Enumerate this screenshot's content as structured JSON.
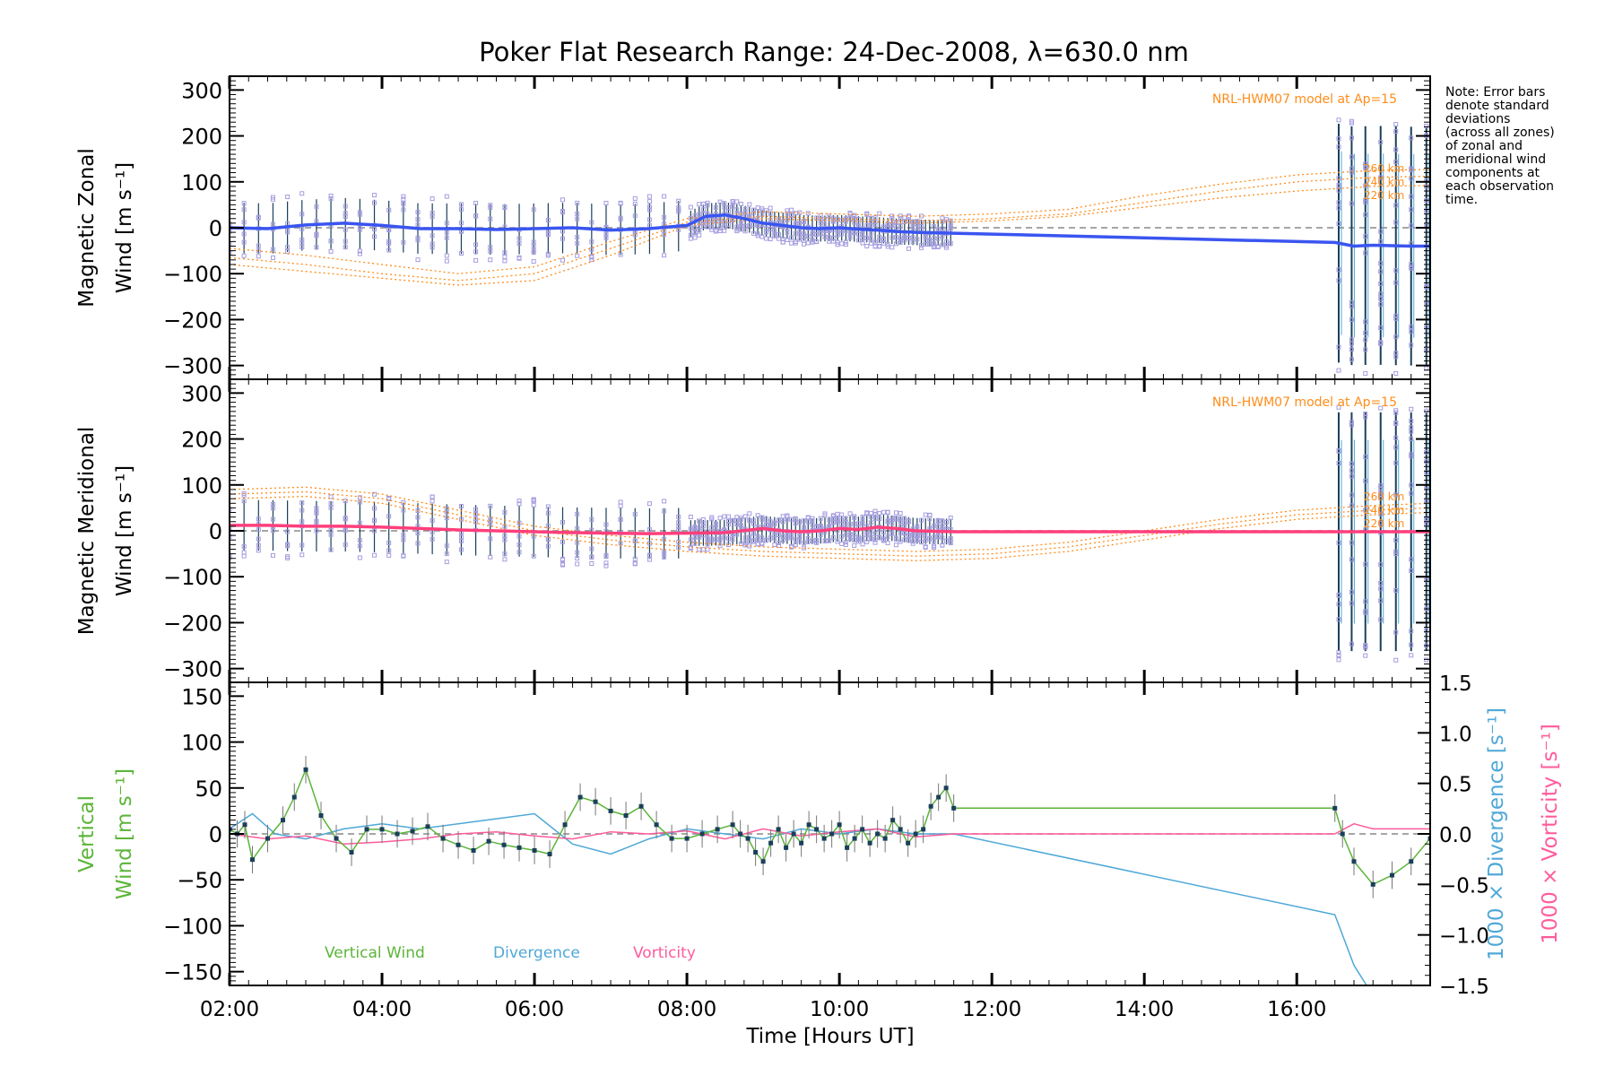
{
  "title": "Poker Flat Research Range: 24-Dec-2008, λ=630.0 nm",
  "note": [
    "Note: Error bars",
    "denote standard",
    "deviations",
    "(across all zones)",
    "of zonal and",
    "meridional wind",
    "components at",
    "each observation",
    "time."
  ],
  "colors": {
    "zonal": "#3a55f0",
    "meridional": "#ff3f7c",
    "vertical": "#5cb53a",
    "divergence": "#4fa8d8",
    "vorticity": "#ff5b9b",
    "model": "#ff8c1a",
    "errorbar": "#1a3f5a",
    "scatter": "#a59de0"
  },
  "chart_data": [
    {
      "type": "line",
      "panel": "zonal",
      "ylabel": [
        "Magnetic Zonal",
        "Wind [m s⁻¹]"
      ],
      "ylim": [
        -330,
        330
      ],
      "yticks": [
        "300",
        "200",
        "100",
        "0",
        "−100",
        "−200",
        "−300"
      ],
      "yticks_values": [
        300,
        200,
        100,
        0,
        -100,
        -200,
        -300
      ],
      "xlim": [
        2,
        17.75
      ],
      "model_label": "NRL-HWM07 model at Ap=15",
      "model_altitudes": [
        "260 km",
        "240 km",
        "220 km"
      ],
      "series": [
        {
          "type": "line",
          "x": [
            2.0,
            2.5,
            3.0,
            3.5,
            4.0,
            4.5,
            5.0,
            5.5,
            6.0,
            6.5,
            7.0,
            7.5,
            8.0,
            8.25,
            8.5,
            8.75,
            9.0,
            9.25,
            9.5,
            9.75,
            10.0,
            10.25,
            10.5,
            10.75,
            11.0,
            11.5,
            16.5,
            16.75,
            17.0,
            17.5,
            17.75
          ],
          "y": [
            0,
            -2,
            6,
            10,
            5,
            -2,
            -2,
            -4,
            -2,
            0,
            -5,
            -2,
            5,
            25,
            28,
            20,
            10,
            5,
            0,
            -2,
            0,
            -3,
            -5,
            -8,
            -10,
            -12,
            -32,
            -40,
            -38,
            -40,
            -40
          ]
        }
      ],
      "models": [
        {
          "x": [
            2,
            3,
            4,
            5,
            6,
            7,
            8,
            9,
            10,
            11,
            12,
            13,
            14,
            15,
            16,
            17,
            17.75
          ],
          "y": [
            -80,
            -95,
            -110,
            -125,
            -115,
            -60,
            5,
            20,
            15,
            10,
            15,
            25,
            45,
            65,
            80,
            90,
            92
          ]
        },
        {
          "x": [
            2,
            3,
            4,
            5,
            6,
            7,
            8,
            9,
            10,
            11,
            12,
            13,
            14,
            15,
            16,
            17,
            17.75
          ],
          "y": [
            -65,
            -80,
            -100,
            -115,
            -100,
            -45,
            12,
            25,
            20,
            15,
            20,
            30,
            55,
            80,
            100,
            110,
            112
          ]
        },
        {
          "x": [
            2,
            3,
            4,
            5,
            6,
            7,
            8,
            9,
            10,
            11,
            12,
            13,
            14,
            15,
            16,
            17,
            17.75
          ],
          "y": [
            -45,
            -60,
            -80,
            -100,
            -85,
            -30,
            20,
            35,
            30,
            25,
            30,
            40,
            70,
            95,
            115,
            125,
            127
          ]
        }
      ]
    },
    {
      "type": "line",
      "panel": "meridional",
      "ylabel": [
        "Magnetic Meridional",
        "Wind [m s⁻¹]"
      ],
      "ylim": [
        -330,
        330
      ],
      "yticks": [
        "300",
        "200",
        "100",
        "0",
        "−100",
        "−200",
        "−300"
      ],
      "yticks_values": [
        300,
        200,
        100,
        0,
        -100,
        -200,
        -300
      ],
      "xlim": [
        2,
        17.75
      ],
      "model_label": "NRL-HWM07 model at Ap=15",
      "model_altitudes": [
        "260 km",
        "240 km",
        "220 km"
      ],
      "series": [
        {
          "type": "line",
          "x": [
            2.0,
            2.5,
            3.0,
            3.5,
            4.0,
            4.5,
            5.0,
            5.5,
            6.0,
            6.5,
            7.0,
            7.5,
            8.0,
            8.5,
            9.0,
            9.25,
            9.5,
            9.75,
            10.0,
            10.25,
            10.5,
            10.75,
            11.0,
            11.5,
            16.5,
            17.0,
            17.75
          ],
          "y": [
            12,
            12,
            10,
            10,
            8,
            5,
            2,
            0,
            -2,
            -4,
            -5,
            -6,
            -5,
            -4,
            5,
            0,
            -2,
            0,
            5,
            3,
            8,
            5,
            0,
            -2,
            -2,
            -2,
            -2
          ]
        }
      ],
      "models": [
        {
          "x": [
            2,
            3,
            4,
            5,
            6,
            7,
            8,
            9,
            10,
            11,
            12,
            13,
            14,
            15,
            16,
            17,
            17.75
          ],
          "y": [
            70,
            75,
            60,
            25,
            -10,
            -30,
            -45,
            -55,
            -60,
            -65,
            -60,
            -45,
            -20,
            5,
            25,
            35,
            40
          ]
        },
        {
          "x": [
            2,
            3,
            4,
            5,
            6,
            7,
            8,
            9,
            10,
            11,
            12,
            13,
            14,
            15,
            16,
            17,
            17.75
          ],
          "y": [
            80,
            85,
            70,
            35,
            0,
            -20,
            -35,
            -45,
            -50,
            -55,
            -50,
            -35,
            -10,
            15,
            35,
            45,
            50
          ]
        },
        {
          "x": [
            2,
            3,
            4,
            5,
            6,
            7,
            8,
            9,
            10,
            11,
            12,
            13,
            14,
            15,
            16,
            17,
            17.75
          ],
          "y": [
            90,
            95,
            80,
            45,
            10,
            -10,
            -25,
            -35,
            -40,
            -45,
            -40,
            -25,
            0,
            25,
            45,
            55,
            60
          ]
        }
      ]
    },
    {
      "type": "line",
      "panel": "vertical",
      "ylabel": [
        "Vertical",
        "Wind [m s⁻¹]"
      ],
      "ylim": [
        -165,
        165
      ],
      "yticks": [
        "150",
        "100",
        "50",
        "0",
        "−50",
        "−100",
        "−150"
      ],
      "yticks_values": [
        150,
        100,
        50,
        0,
        -50,
        -100,
        -150
      ],
      "y2label_divergence": "1000 × Divergence [s⁻¹]",
      "y2label_vorticity": "1000 × Vorticity [s⁻¹]",
      "y2lim": [
        -1.5,
        1.5
      ],
      "y2ticks": [
        "1.5",
        "1.0",
        "0.5",
        "0.0",
        "−0.5",
        "−1.0",
        "−1.5"
      ],
      "y2ticks_values": [
        1.5,
        1.0,
        0.5,
        0.0,
        -0.5,
        -1.0,
        -1.5
      ],
      "xlabel": "Time [Hours UT]",
      "xticks": [
        "02:00",
        "04:00",
        "06:00",
        "08:00",
        "10:00",
        "12:00",
        "14:00",
        "16:00"
      ],
      "xticks_values": [
        2,
        4,
        6,
        8,
        10,
        12,
        14,
        16
      ],
      "xlim": [
        2,
        17.75
      ],
      "legend": [
        "Vertical Wind",
        "Divergence",
        "Vorticity"
      ],
      "series": [
        {
          "name": "Vertical Wind",
          "x": [
            2.0,
            2.1,
            2.2,
            2.3,
            2.5,
            2.7,
            2.85,
            3.0,
            3.2,
            3.4,
            3.6,
            3.8,
            4.0,
            4.2,
            4.4,
            4.6,
            4.8,
            5.0,
            5.2,
            5.4,
            5.6,
            5.8,
            6.0,
            6.2,
            6.4,
            6.6,
            6.8,
            7.0,
            7.2,
            7.4,
            7.6,
            7.8,
            8.0,
            8.2,
            8.4,
            8.6,
            8.7,
            8.8,
            8.9,
            9.0,
            9.1,
            9.2,
            9.3,
            9.4,
            9.5,
            9.6,
            9.7,
            9.8,
            9.9,
            10.0,
            10.1,
            10.2,
            10.3,
            10.4,
            10.5,
            10.6,
            10.7,
            10.8,
            10.9,
            11.0,
            11.1,
            11.2,
            11.3,
            11.4,
            11.5,
            16.5,
            16.6,
            16.75,
            17.0,
            17.25,
            17.5,
            17.75
          ],
          "y": [
            5,
            0,
            10,
            -28,
            -5,
            15,
            40,
            70,
            20,
            -5,
            -20,
            5,
            5,
            0,
            3,
            8,
            -5,
            -12,
            -18,
            -8,
            -12,
            -15,
            -18,
            -22,
            10,
            40,
            35,
            25,
            20,
            30,
            10,
            -5,
            -5,
            0,
            5,
            10,
            0,
            -5,
            -20,
            -30,
            -10,
            5,
            -15,
            0,
            -10,
            10,
            5,
            -5,
            0,
            10,
            -15,
            -5,
            5,
            -10,
            0,
            -5,
            15,
            5,
            -10,
            0,
            5,
            30,
            40,
            50,
            28,
            28,
            0,
            -30,
            -55,
            -45,
            -30,
            -5
          ]
        },
        {
          "name": "Divergence",
          "x": [
            2.0,
            2.3,
            2.6,
            3.0,
            3.5,
            4.0,
            4.5,
            5.0,
            5.5,
            6.0,
            6.5,
            7.0,
            7.5,
            8.0,
            8.5,
            9.0,
            9.5,
            10.0,
            10.5,
            11.0,
            11.5,
            16.5,
            16.75,
            17.0,
            17.75
          ],
          "y2": [
            0.05,
            0.2,
            0.0,
            -0.05,
            0.05,
            0.1,
            0.05,
            0.1,
            0.15,
            0.2,
            -0.1,
            -0.2,
            -0.05,
            0.05,
            0.0,
            -0.05,
            0.05,
            0.0,
            0.05,
            0.0,
            0.0,
            -0.8,
            -1.3,
            -1.6,
            -1.7
          ]
        },
        {
          "name": "Vorticity",
          "x": [
            2.0,
            2.5,
            3.0,
            3.5,
            4.0,
            4.5,
            5.0,
            5.5,
            6.0,
            6.5,
            7.0,
            7.5,
            8.0,
            8.5,
            9.0,
            9.5,
            10.0,
            10.5,
            11.0,
            11.5,
            16.5,
            16.75,
            17.0,
            17.75
          ],
          "y2": [
            0.0,
            -0.05,
            -0.02,
            -0.1,
            -0.08,
            -0.05,
            0.0,
            0.02,
            -0.02,
            -0.05,
            0.02,
            0.0,
            0.03,
            -0.05,
            0.05,
            -0.02,
            0.02,
            0.05,
            -0.03,
            0.0,
            0.0,
            0.1,
            0.05,
            0.05
          ]
        }
      ]
    }
  ]
}
